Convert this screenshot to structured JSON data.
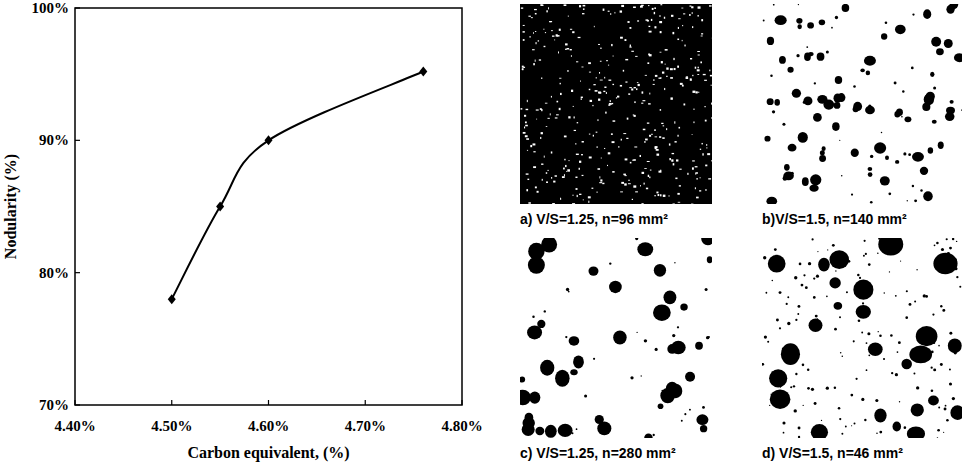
{
  "chart_data": {
    "type": "line",
    "x_label": "Carbon equivalent, (%)",
    "y_label": "Nodularity (%)",
    "x": [
      4.5,
      4.55,
      4.6,
      4.76
    ],
    "values": [
      78,
      85,
      90,
      95.2
    ],
    "xlim": [
      4.4,
      4.8
    ],
    "ylim": [
      70,
      100
    ],
    "xticks": [
      {
        "value": 4.4,
        "label": "4.40%"
      },
      {
        "value": 4.5,
        "label": "4.50%"
      },
      {
        "value": 4.6,
        "label": "4.60%"
      },
      {
        "value": 4.7,
        "label": "4.70%"
      },
      {
        "value": 4.8,
        "label": "4.80%"
      }
    ],
    "yticks": [
      {
        "value": 70,
        "label": "70%"
      },
      {
        "value": 80,
        "label": "80%"
      },
      {
        "value": 90,
        "label": "90%"
      },
      {
        "value": 100,
        "label": "100%"
      }
    ],
    "marker": "diamond",
    "color": "#000000",
    "grid": false
  },
  "micrographs": [
    {
      "caption": "a) V/S=1.25, n=96 mm²"
    },
    {
      "caption": "b)V/S=1.5, n=140 mm²"
    },
    {
      "caption": "c) V/S=1.25, n=280 mm²"
    },
    {
      "caption": "d) V/S=1.5, n=46 mm²"
    }
  ]
}
